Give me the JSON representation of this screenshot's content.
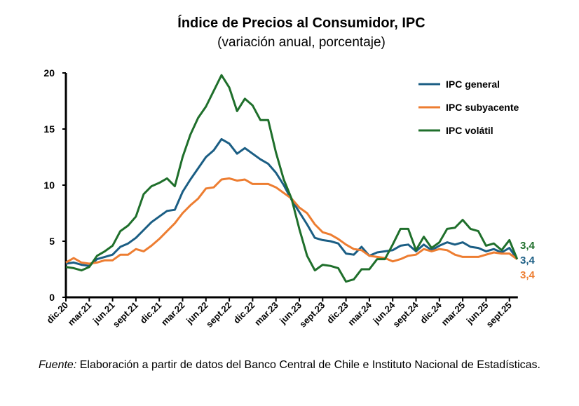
{
  "chart_data": {
    "type": "line",
    "title": "Índice de Precios al Consumidor, IPC",
    "subtitle": "(variación anual, porcentaje)",
    "xlabel": "",
    "ylabel": "",
    "ylim": [
      0,
      20
    ],
    "yticks": [
      "0",
      "5",
      "10",
      "15",
      "20"
    ],
    "xtick_labels": [
      "dic.20",
      "mar.21",
      "jun.21",
      "sept.21",
      "dic.21",
      "mar.22",
      "jun.22",
      "sept.22",
      "dic.22",
      "mar.23",
      "jun.23",
      "sept.23",
      "dic.23",
      "mar.24",
      "jun.24",
      "sept.24",
      "dic.24",
      "mar.25",
      "jun.25",
      "sept.25"
    ],
    "x": [
      "dic.20",
      "ene.21",
      "feb.21",
      "mar.21",
      "abr.21",
      "may.21",
      "jun.21",
      "jul.21",
      "ago.21",
      "sept.21",
      "oct.21",
      "nov.21",
      "dic.21",
      "ene.22",
      "feb.22",
      "mar.22",
      "abr.22",
      "may.22",
      "jun.22",
      "jul.22",
      "ago.22",
      "sept.22",
      "oct.22",
      "nov.22",
      "dic.22",
      "ene.23",
      "feb.23",
      "mar.23",
      "abr.23",
      "may.23",
      "jun.23",
      "jul.23",
      "ago.23",
      "sept.23",
      "oct.23",
      "nov.23",
      "dic.23",
      "ene.24",
      "feb.24",
      "mar.24",
      "abr.24",
      "may.24",
      "jun.24",
      "jul.24",
      "ago.24",
      "sept.24",
      "oct.24",
      "nov.24",
      "dic.24",
      "ene.25",
      "feb.25",
      "mar.25",
      "abr.25",
      "may.25",
      "jun.25",
      "jul.25",
      "ago.25",
      "sept.25",
      "oct.25"
    ],
    "legend_position": "top-right",
    "series": [
      {
        "name": "IPC general",
        "color": "#1b5e84",
        "end_label": "3,4",
        "values": [
          3.0,
          3.1,
          2.9,
          2.8,
          3.4,
          3.6,
          3.8,
          4.5,
          4.8,
          5.3,
          6.0,
          6.7,
          7.2,
          7.7,
          7.8,
          9.4,
          10.5,
          11.5,
          12.5,
          13.1,
          14.1,
          13.7,
          12.8,
          13.3,
          12.8,
          12.3,
          11.9,
          11.1,
          10.0,
          8.7,
          7.6,
          6.5,
          5.3,
          5.1,
          5.0,
          4.8,
          3.9,
          3.8,
          4.5,
          3.7,
          4.0,
          4.1,
          4.2,
          4.6,
          4.7,
          4.1,
          4.7,
          4.2,
          4.6,
          4.9,
          4.7,
          4.9,
          4.5,
          4.4,
          4.1,
          4.3,
          4.0,
          4.4,
          3.4
        ]
      },
      {
        "name": "IPC subyacente",
        "color": "#ed7d31",
        "end_label": "3,4",
        "values": [
          3.1,
          3.5,
          3.1,
          3.0,
          3.1,
          3.3,
          3.3,
          3.8,
          3.8,
          4.3,
          4.1,
          4.6,
          5.2,
          5.9,
          6.6,
          7.5,
          8.2,
          8.8,
          9.7,
          9.8,
          10.5,
          10.6,
          10.4,
          10.5,
          10.1,
          10.1,
          10.1,
          9.8,
          9.3,
          8.8,
          8.0,
          7.5,
          6.5,
          5.8,
          5.6,
          5.2,
          4.7,
          4.3,
          4.2,
          3.7,
          3.6,
          3.5,
          3.2,
          3.4,
          3.7,
          3.8,
          4.3,
          4.1,
          4.3,
          4.2,
          3.8,
          3.6,
          3.6,
          3.6,
          3.8,
          4.0,
          3.9,
          3.9,
          3.4
        ]
      },
      {
        "name": "IPC volátil",
        "color": "#1f6f2b",
        "end_label": "3,4",
        "values": [
          2.7,
          2.6,
          2.4,
          2.7,
          3.7,
          4.1,
          4.6,
          5.9,
          6.4,
          7.2,
          9.2,
          9.9,
          10.2,
          10.6,
          9.9,
          12.5,
          14.5,
          16.0,
          17.0,
          18.4,
          19.8,
          18.7,
          16.6,
          17.7,
          17.1,
          15.8,
          15.8,
          12.9,
          10.5,
          8.8,
          6.1,
          3.7,
          2.4,
          2.9,
          2.8,
          2.6,
          1.4,
          1.6,
          2.5,
          2.5,
          3.4,
          3.4,
          4.7,
          6.1,
          6.1,
          4.2,
          5.4,
          4.4,
          4.9,
          6.1,
          6.2,
          6.9,
          6.1,
          5.9,
          4.6,
          4.8,
          4.2,
          5.1,
          3.4
        ]
      }
    ]
  },
  "source": {
    "label": "Fuente:",
    "text": " Elaboración a partir de datos del Banco Central de Chile e Instituto Nacional de Estadísticas."
  }
}
